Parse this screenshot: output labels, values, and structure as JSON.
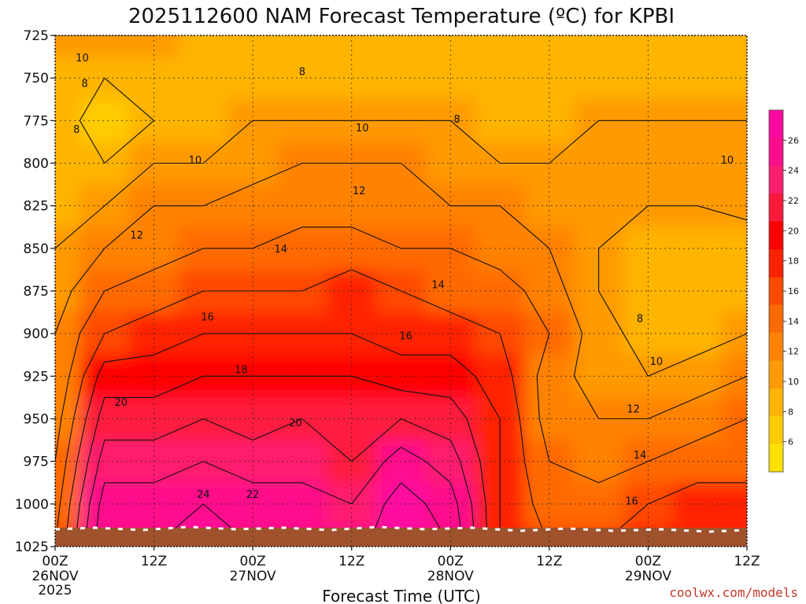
{
  "chart_data": {
    "type": "heatmap",
    "title": "2025112600 NAM Forecast Temperature (ºC) for KPBI",
    "xlabel": "Forecast Time (UTC)",
    "ylabel": "",
    "credit": "coolwx.com/models",
    "y_axis": {
      "scale": "linear",
      "range": [
        725,
        1025
      ],
      "reversed": true,
      "ticks": [
        "725",
        "750",
        "775",
        "800",
        "825",
        "850",
        "875",
        "900",
        "925",
        "950",
        "975",
        "1000",
        "1025"
      ]
    },
    "x_axis": {
      "range_hours": [
        0,
        84
      ],
      "ticks": [
        {
          "hour": 0,
          "label": "00Z",
          "date": "26NOV",
          "year": "2025"
        },
        {
          "hour": 12,
          "label": "12Z",
          "date": "",
          "year": ""
        },
        {
          "hour": 24,
          "label": "00Z",
          "date": "27NOV",
          "year": ""
        },
        {
          "hour": 36,
          "label": "12Z",
          "date": "",
          "year": ""
        },
        {
          "hour": 48,
          "label": "00Z",
          "date": "28NOV",
          "year": ""
        },
        {
          "hour": 60,
          "label": "12Z",
          "date": "",
          "year": ""
        },
        {
          "hour": 72,
          "label": "00Z",
          "date": "29NOV",
          "year": ""
        },
        {
          "hour": 84,
          "label": "12Z",
          "date": "",
          "year": ""
        }
      ]
    },
    "grid": true,
    "colorbar": {
      "placement": "right",
      "ticks": [
        "6",
        "8",
        "10",
        "12",
        "14",
        "16",
        "18",
        "20",
        "22",
        "24",
        "26"
      ],
      "colors": [
        "#ffe100",
        "#ffcc00",
        "#ffb400",
        "#ff9a00",
        "#ff8200",
        "#ff6a00",
        "#ff4a00",
        "#ff2200",
        "#ff0000",
        "#ff1a3c",
        "#ff1f6e",
        "#ff0f8c",
        "#ff0aa0"
      ],
      "min": 4,
      "max": 28
    },
    "x_hours": [
      0,
      6,
      12,
      18,
      24,
      30,
      36,
      42,
      48,
      54,
      60,
      66,
      72,
      78,
      84
    ],
    "levels": [
      725,
      750,
      775,
      800,
      825,
      850,
      875,
      900,
      925,
      950,
      975,
      1000,
      1025
    ],
    "temperature_c": [
      [
        10,
        9,
        9,
        9,
        9,
        10,
        11,
        12,
        12,
        13,
        14,
        15,
        16
      ],
      [
        10,
        8,
        7,
        8,
        10,
        12,
        14,
        16,
        19,
        21,
        23,
        25,
        26
      ],
      [
        10,
        8,
        8,
        10,
        12,
        13,
        15,
        17,
        19,
        21,
        23,
        25,
        26
      ],
      [
        9,
        8,
        9,
        10,
        12,
        14,
        16,
        18,
        20,
        22,
        24,
        26,
        27
      ],
      [
        9,
        9,
        10,
        11,
        13,
        14,
        16,
        18,
        20,
        21,
        23,
        25,
        26
      ],
      [
        9,
        9,
        10,
        12,
        13,
        15,
        16,
        18,
        20,
        22,
        23,
        25,
        26
      ],
      [
        9,
        9,
        10,
        12,
        13,
        15,
        17,
        18,
        20,
        21,
        22,
        24,
        25
      ],
      [
        8,
        9,
        10,
        12,
        13,
        14,
        16,
        17,
        19,
        22,
        25,
        27,
        28
      ],
      [
        9,
        9,
        10,
        11,
        12,
        14,
        15,
        17,
        19,
        21,
        23,
        25,
        26
      ],
      [
        9,
        9,
        9,
        10,
        12,
        13,
        15,
        16,
        17,
        18,
        18,
        18,
        18
      ],
      [
        8,
        9,
        9,
        10,
        11,
        12,
        13,
        14,
        13,
        13,
        14,
        15,
        16
      ],
      [
        8,
        9,
        10,
        10,
        10,
        10,
        10,
        11,
        11,
        12,
        13,
        15,
        16
      ],
      [
        9,
        9,
        10,
        10,
        10,
        9,
        8,
        9,
        10,
        12,
        14,
        16,
        17
      ],
      [
        9,
        9,
        10,
        10,
        10,
        8,
        8,
        9,
        11,
        13,
        15,
        17,
        18
      ],
      [
        9,
        9,
        10,
        10,
        11,
        8,
        8,
        10,
        12,
        14,
        15,
        17,
        18
      ]
    ],
    "contour_labels": [
      {
        "text": "10",
        "hour": 3.3,
        "level": 738
      },
      {
        "text": "8",
        "hour": 3.6,
        "level": 753
      },
      {
        "text": "8",
        "hour": 2.6,
        "level": 780
      },
      {
        "text": "8",
        "hour": 30.0,
        "level": 746
      },
      {
        "text": "10",
        "hour": 37.3,
        "level": 779
      },
      {
        "text": "8",
        "hour": 48.8,
        "level": 774
      },
      {
        "text": "10",
        "hour": 17.0,
        "level": 798
      },
      {
        "text": "12",
        "hour": 36.9,
        "level": 816
      },
      {
        "text": "10",
        "hour": 81.6,
        "level": 798
      },
      {
        "text": "12",
        "hour": 9.9,
        "level": 842
      },
      {
        "text": "14",
        "hour": 27.4,
        "level": 850
      },
      {
        "text": "14",
        "hour": 46.5,
        "level": 871
      },
      {
        "text": "16",
        "hour": 18.5,
        "level": 890
      },
      {
        "text": "16",
        "hour": 42.6,
        "level": 901
      },
      {
        "text": "8",
        "hour": 71.0,
        "level": 891
      },
      {
        "text": "10",
        "hour": 73.0,
        "level": 916
      },
      {
        "text": "18",
        "hour": 22.6,
        "level": 921
      },
      {
        "text": "20",
        "hour": 8.0,
        "level": 940
      },
      {
        "text": "12",
        "hour": 70.2,
        "level": 944
      },
      {
        "text": "20",
        "hour": 29.2,
        "level": 952
      },
      {
        "text": "14",
        "hour": 71.0,
        "level": 971
      },
      {
        "text": "24",
        "hour": 18.0,
        "level": 994
      },
      {
        "text": "22",
        "hour": 24.0,
        "level": 994
      },
      {
        "text": "16",
        "hour": 70.0,
        "level": 998
      }
    ]
  }
}
